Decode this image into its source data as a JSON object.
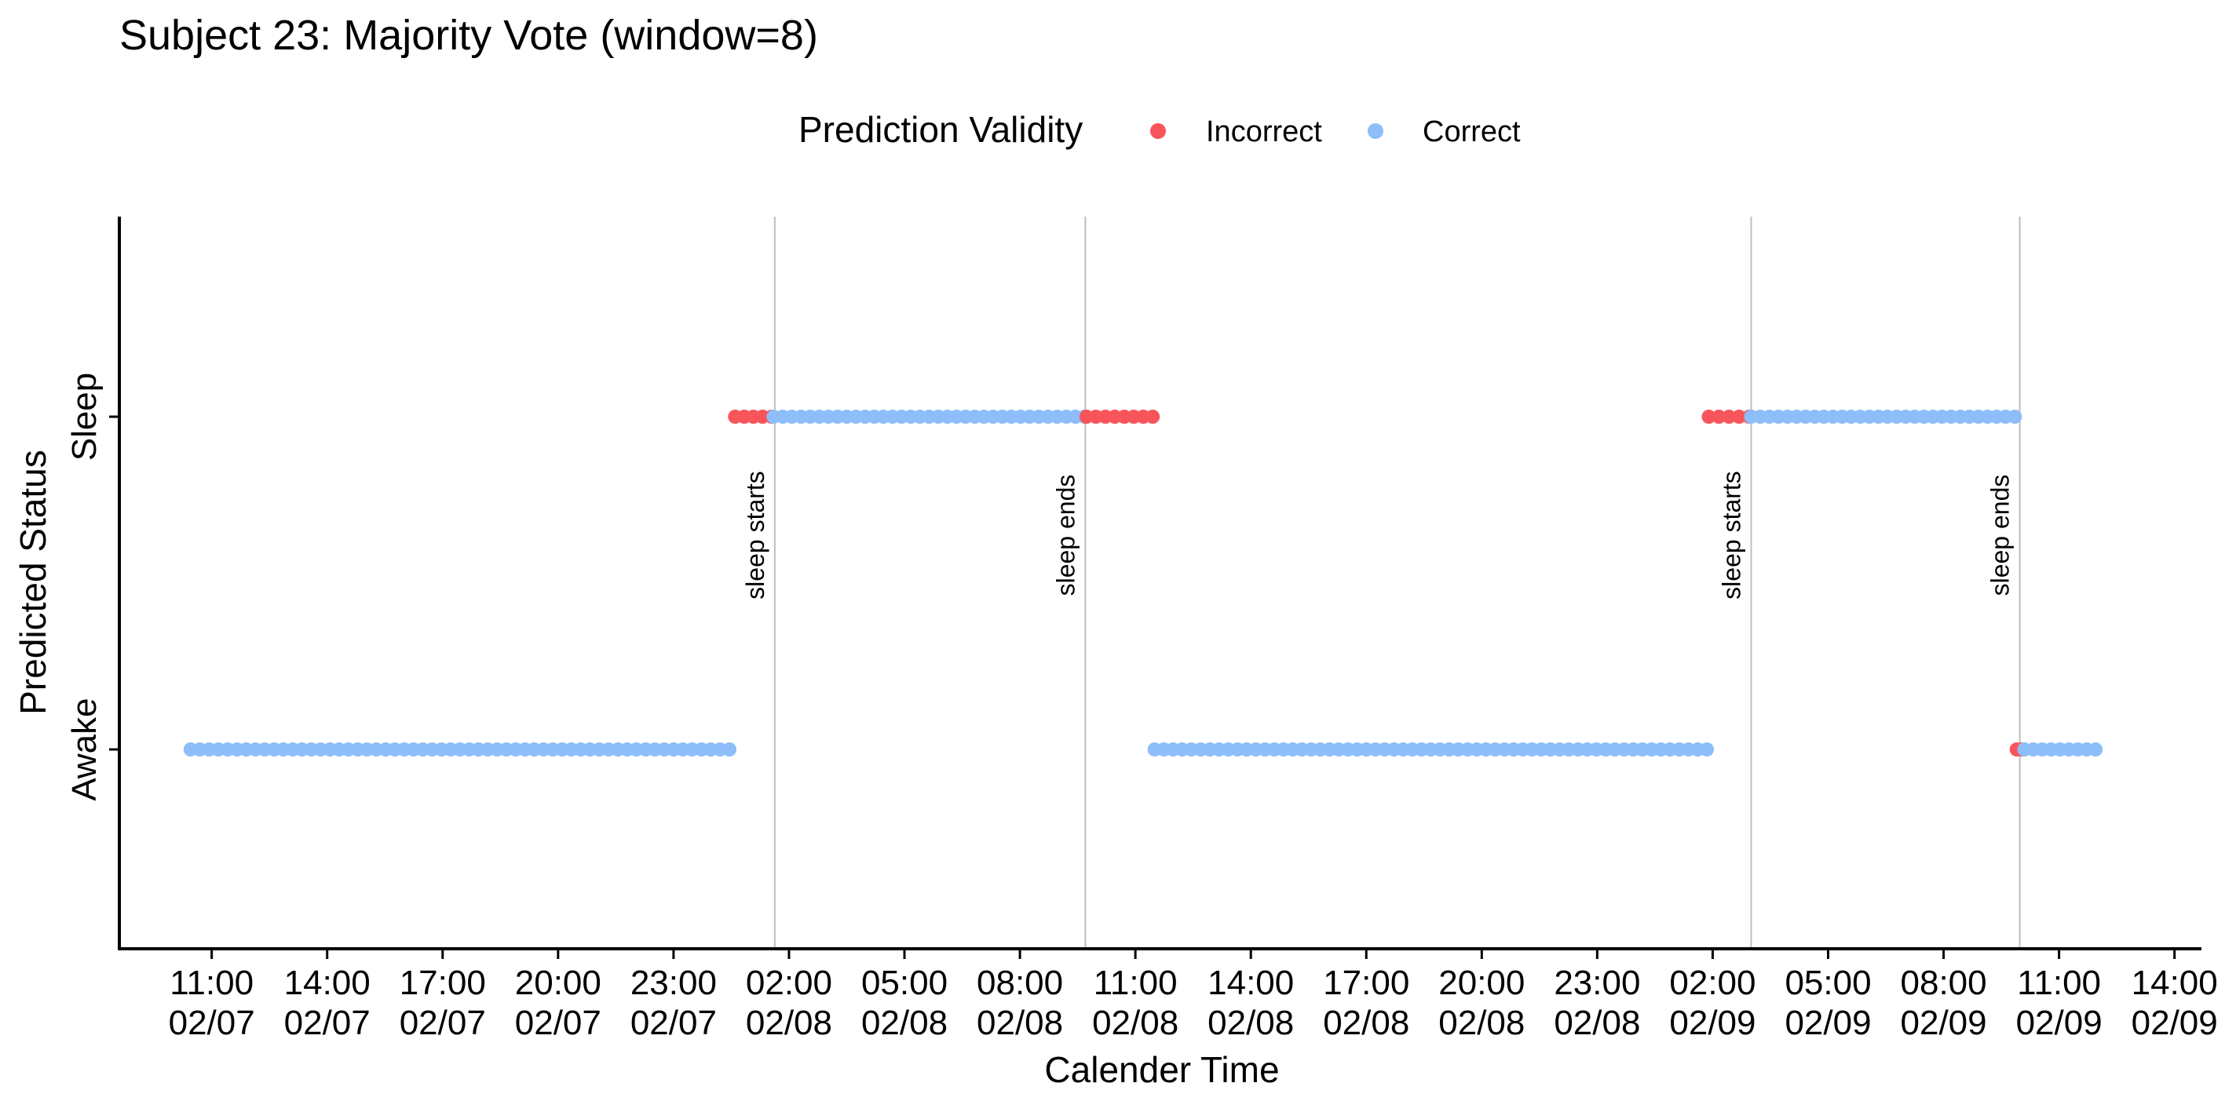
{
  "chart_data": {
    "type": "scatter",
    "title": "Subject 23: Majority Vote (window=8)",
    "xlabel": "Calender Time",
    "ylabel": "Predicted Status",
    "y_categories": [
      "Awake",
      "Sleep"
    ],
    "x_unit": "hours since 2024-02-07 00:00",
    "xlim": [
      8.6,
      62.7
    ],
    "x_ticks": [
      {
        "x": 11,
        "label": [
          "11:00",
          "02/07"
        ]
      },
      {
        "x": 14,
        "label": [
          "14:00",
          "02/07"
        ]
      },
      {
        "x": 17,
        "label": [
          "17:00",
          "02/07"
        ]
      },
      {
        "x": 20,
        "label": [
          "20:00",
          "02/07"
        ]
      },
      {
        "x": 23,
        "label": [
          "23:00",
          "02/07"
        ]
      },
      {
        "x": 26,
        "label": [
          "02:00",
          "02/08"
        ]
      },
      {
        "x": 29,
        "label": [
          "05:00",
          "02/08"
        ]
      },
      {
        "x": 32,
        "label": [
          "08:00",
          "02/08"
        ]
      },
      {
        "x": 35,
        "label": [
          "11:00",
          "02/08"
        ]
      },
      {
        "x": 38,
        "label": [
          "14:00",
          "02/08"
        ]
      },
      {
        "x": 41,
        "label": [
          "17:00",
          "02/08"
        ]
      },
      {
        "x": 44,
        "label": [
          "20:00",
          "02/08"
        ]
      },
      {
        "x": 47,
        "label": [
          "23:00",
          "02/08"
        ]
      },
      {
        "x": 50,
        "label": [
          "02:00",
          "02/09"
        ]
      },
      {
        "x": 53,
        "label": [
          "05:00",
          "02/09"
        ]
      },
      {
        "x": 56,
        "label": [
          "08:00",
          "02/09"
        ]
      },
      {
        "x": 59,
        "label": [
          "11:00",
          "02/09"
        ]
      },
      {
        "x": 62,
        "label": [
          "14:00",
          "02/09"
        ]
      }
    ],
    "legend": {
      "title": "Prediction Validity",
      "position": "top",
      "items": [
        {
          "name": "Incorrect",
          "color": "#F8545B"
        },
        {
          "name": "Correct",
          "color": "#8DBEF9"
        }
      ]
    },
    "reference_lines": [
      {
        "x": 25.63,
        "label": "sleep starts"
      },
      {
        "x": 33.7,
        "label": "sleep ends"
      },
      {
        "x": 51.0,
        "label": "sleep starts"
      },
      {
        "x": 57.98,
        "label": "sleep ends"
      }
    ],
    "segments": [
      {
        "status": "Awake",
        "validity": "Correct",
        "x_start": 10.45,
        "x_end": 24.45
      },
      {
        "status": "Sleep",
        "validity": "Incorrect",
        "x_start": 24.6,
        "x_end": 25.55
      },
      {
        "status": "Sleep",
        "validity": "Correct",
        "x_start": 25.6,
        "x_end": 33.68
      },
      {
        "status": "Sleep",
        "validity": "Incorrect",
        "x_start": 33.73,
        "x_end": 35.45
      },
      {
        "status": "Awake",
        "validity": "Correct",
        "x_start": 35.5,
        "x_end": 49.85
      },
      {
        "status": "Sleep",
        "validity": "Incorrect",
        "x_start": 49.9,
        "x_end": 50.95
      },
      {
        "status": "Sleep",
        "validity": "Correct",
        "x_start": 51.0,
        "x_end": 57.85
      },
      {
        "status": "Awake",
        "validity": "Incorrect",
        "x_start": 57.9,
        "x_end": 58.02
      },
      {
        "status": "Awake",
        "validity": "Correct",
        "x_start": 58.1,
        "x_end": 59.95
      }
    ],
    "grid": false
  }
}
